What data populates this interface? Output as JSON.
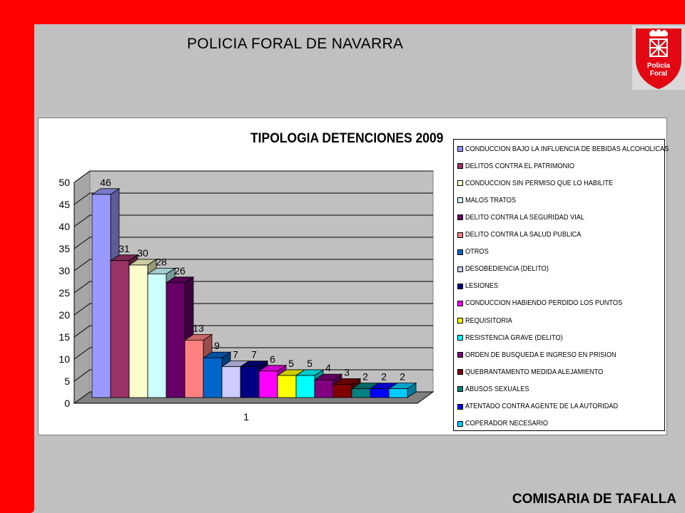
{
  "header": {
    "org_title": "POLICIA FORAL DE NAVARRA"
  },
  "logo": {
    "text_line1": "Policía",
    "text_line2": "Foral",
    "color": "#e30613"
  },
  "footer": {
    "title": "COMISARIA DE TAFALLA"
  },
  "colors": {
    "band": "#ff0000",
    "background": "#c0c0c0"
  },
  "chart_data": {
    "type": "bar",
    "title": "TIPOLOGIA DETENCIONES 2009",
    "categories": [
      "1"
    ],
    "ylim": [
      0,
      50
    ],
    "yticks": [
      0,
      5,
      10,
      15,
      20,
      25,
      30,
      35,
      40,
      45,
      50
    ],
    "grid": true,
    "legend_position": "right",
    "style": "3d-column",
    "series": [
      {
        "name": "CONDUCCION BAJO LA INFLUENCIA DE BEBIDAS ALCOHOLICAS",
        "values": [
          46
        ],
        "color": "#9999ff"
      },
      {
        "name": "DELITOS CONTRA EL PATRIMONIO",
        "values": [
          31
        ],
        "color": "#993366"
      },
      {
        "name": "CONDUCCION SIN PERMISO QUE LO HABILITE",
        "values": [
          30
        ],
        "color": "#ffffcc"
      },
      {
        "name": "MALOS TRATOS",
        "values": [
          28
        ],
        "color": "#ccffff"
      },
      {
        "name": "DELITO CONTRA LA SEGURIDAD VIAL",
        "values": [
          26
        ],
        "color": "#660066"
      },
      {
        "name": "DELITO CONTRA LA SALUD PUBLICA",
        "values": [
          13
        ],
        "color": "#ff8080"
      },
      {
        "name": "OTROS",
        "values": [
          9
        ],
        "color": "#0066cc"
      },
      {
        "name": "DESOBEDIENCIA (DELITO)",
        "values": [
          7
        ],
        "color": "#ccccff"
      },
      {
        "name": "LESIONES",
        "values": [
          7
        ],
        "color": "#000080"
      },
      {
        "name": "CONDUCCION HABIENDO PERDIDO LOS PUNTOS",
        "values": [
          6
        ],
        "color": "#ff00ff"
      },
      {
        "name": "REQUISITORIA",
        "values": [
          5
        ],
        "color": "#ffff00"
      },
      {
        "name": "RESISTENCIA GRAVE (DELITO)",
        "values": [
          5
        ],
        "color": "#00ffff"
      },
      {
        "name": "ORDEN DE BUSQUEDA E INGRESO EN PRISION",
        "values": [
          4
        ],
        "color": "#800080"
      },
      {
        "name": "QUEBRANTAMENTO MEDIDA ALEJAMIENTO",
        "values": [
          3
        ],
        "color": "#800000"
      },
      {
        "name": "ABUSOS SEXUALES",
        "values": [
          2
        ],
        "color": "#008080"
      },
      {
        "name": "ATENTADO CONTRA AGENTE DE LA AUTORIDAD",
        "values": [
          2
        ],
        "color": "#0000ff"
      },
      {
        "name": "COPERADOR NECESARIO",
        "values": [
          2
        ],
        "color": "#00ccff"
      }
    ]
  }
}
